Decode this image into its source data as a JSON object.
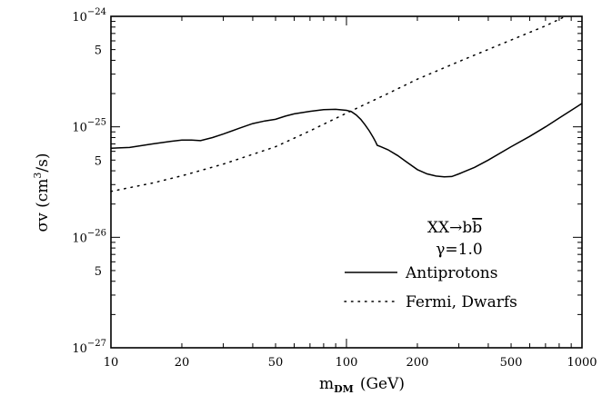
{
  "chart_data": {
    "type": "line",
    "xscale": "log",
    "yscale": "log",
    "xlim": [
      10,
      1000
    ],
    "ylim": [
      1e-27,
      1e-24
    ],
    "x_ticks": [
      10,
      20,
      50,
      100,
      200,
      500,
      1000
    ],
    "x_tick_labels": [
      "10",
      "20",
      "50",
      "100",
      "200",
      "500",
      "1000"
    ],
    "y_major_ticks": [
      1e-27,
      1e-26,
      1e-25,
      1e-24
    ],
    "y_major_exponents": [
      "-27",
      "-26",
      "-25",
      "-24"
    ],
    "y_major_base": "10",
    "y_minor_labeled": [
      5e-27,
      5e-26,
      5e-25
    ],
    "y_minor_label_text": "5",
    "xlabel": {
      "main": "m",
      "sub": "DM",
      "rest": "(GeV)"
    },
    "ylabel": {
      "pre": "σv (cm",
      "sup": "3",
      "post": "/s)"
    },
    "grid": false,
    "legend_placement": "bottom-right",
    "annotation_process": {
      "pre": "XX→b",
      "bbar": "b"
    },
    "annotation_gamma": "γ=1.0",
    "series": [
      {
        "name": "Antiprotons",
        "style": "solid",
        "x": [
          10,
          12,
          15,
          18,
          20,
          22,
          24,
          27,
          30,
          35,
          40,
          45,
          50,
          55,
          60,
          70,
          80,
          90,
          100,
          105,
          110,
          115,
          120,
          125,
          130,
          133,
          135,
          140,
          150,
          165,
          180,
          200,
          220,
          240,
          260,
          280,
          300,
          350,
          400,
          500,
          600,
          700,
          800,
          1000
        ],
        "y": [
          6.4e-26,
          6.5e-26,
          7e-26,
          7.4e-26,
          7.6e-26,
          7.6e-26,
          7.5e-26,
          8e-26,
          8.6e-26,
          9.7e-26,
          1.07e-25,
          1.13e-25,
          1.17e-25,
          1.25e-25,
          1.31e-25,
          1.38e-25,
          1.43e-25,
          1.44e-25,
          1.41e-25,
          1.37e-25,
          1.28e-25,
          1.17e-25,
          1.04e-25,
          9.2e-26,
          8e-26,
          7.3e-26,
          6.8e-26,
          6.6e-26,
          6.2e-26,
          5.5e-26,
          4.8e-26,
          4.1e-26,
          3.75e-26,
          3.58e-26,
          3.52e-26,
          3.55e-26,
          3.75e-26,
          4.3e-26,
          5e-26,
          6.6e-26,
          8.2e-26,
          1e-25,
          1.2e-25,
          1.63e-25
        ]
      },
      {
        "name": "Fermi, Dwarfs",
        "style": "dotted",
        "x": [
          10,
          15,
          20,
          30,
          50,
          70,
          100,
          150,
          200,
          300,
          500,
          700,
          850
        ],
        "y": [
          2.6e-26,
          3.1e-26,
          3.6e-26,
          4.6e-26,
          6.6e-26,
          9.2e-26,
          1.33e-25,
          2e-25,
          2.7e-25,
          3.9e-25,
          6.1e-25,
          8.2e-25,
          1e-24
        ]
      }
    ]
  }
}
